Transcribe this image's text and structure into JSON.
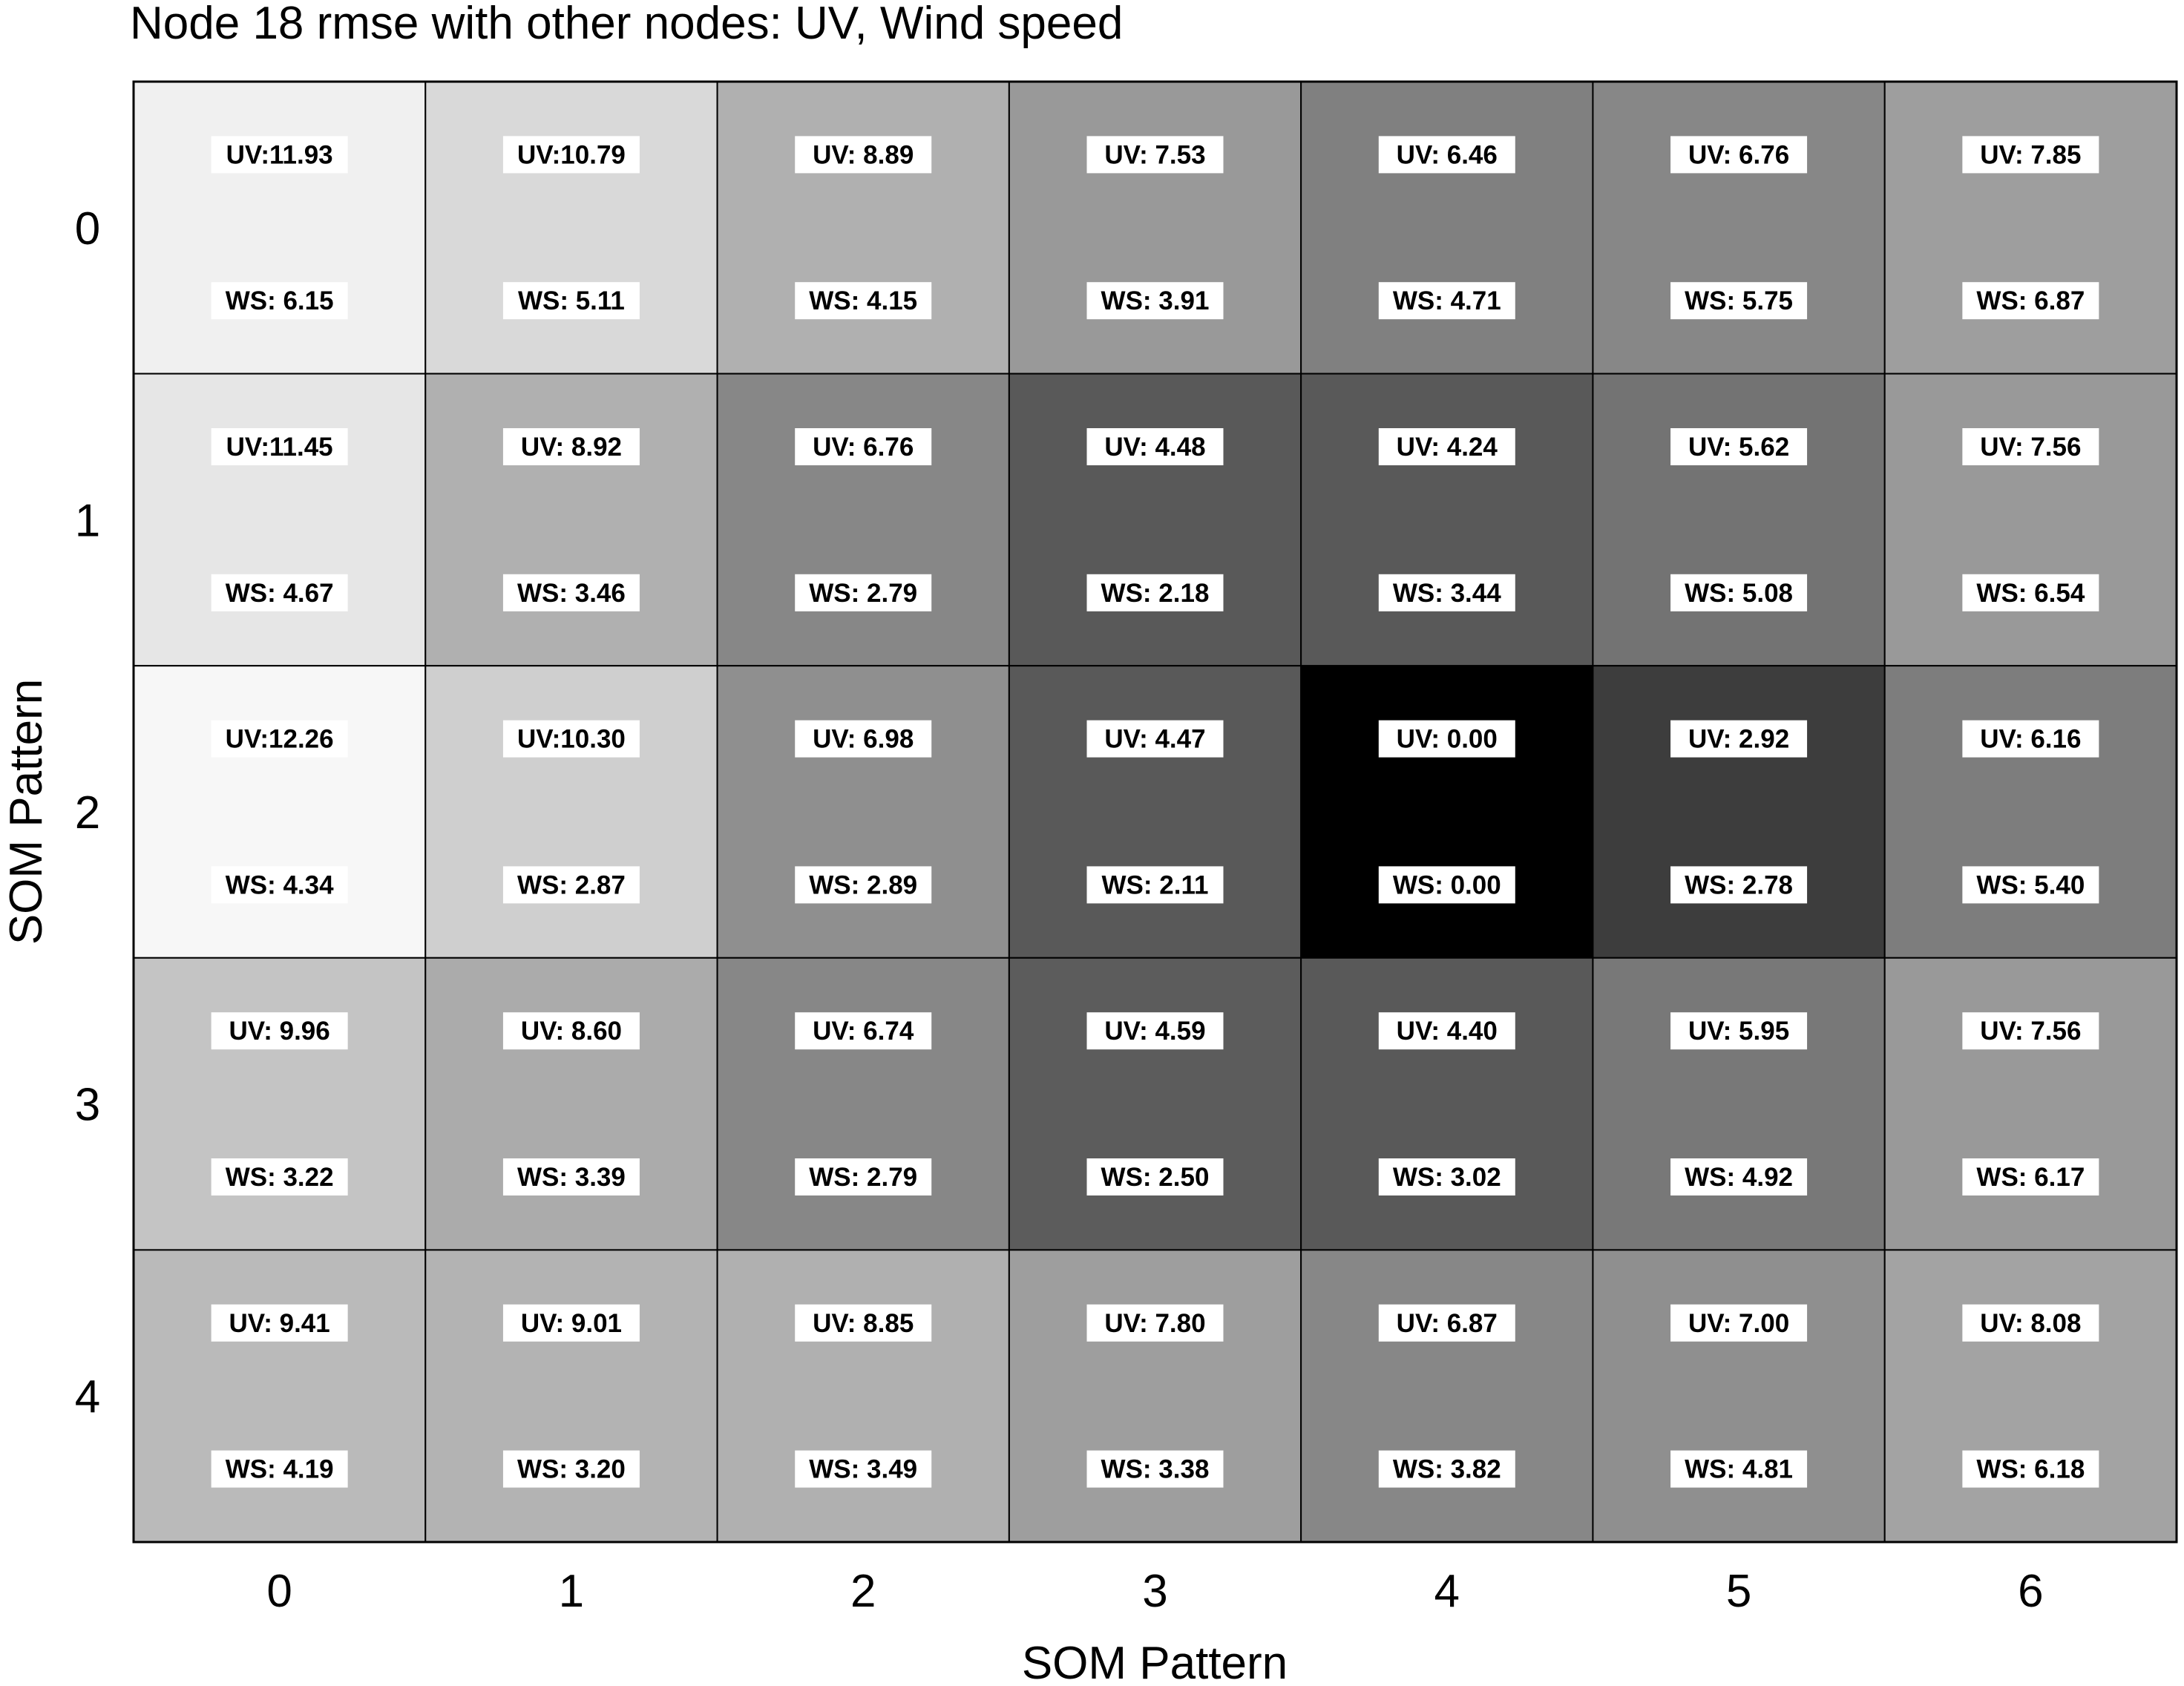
{
  "chart_data": {
    "type": "heatmap",
    "title": "Node 18 rmse with other nodes: UV, Wind speed",
    "xlabel": "SOM Pattern",
    "ylabel": "SOM Pattern",
    "x_categories": [
      "0",
      "1",
      "2",
      "3",
      "4",
      "5",
      "6"
    ],
    "y_categories": [
      "0",
      "1",
      "2",
      "3",
      "4"
    ],
    "colormap": "grayscale (low = black, high = white)",
    "grid": true,
    "cells": [
      [
        {
          "uv": "UV:11.93",
          "ws": "WS: 6.15",
          "shade": 0.94
        },
        {
          "uv": "UV:10.79",
          "ws": "WS: 5.11",
          "shade": 0.85
        },
        {
          "uv": "UV: 8.89",
          "ws": "WS: 4.15",
          "shade": 0.69
        },
        {
          "uv": "UV: 7.53",
          "ws": "WS: 3.91",
          "shade": 0.6
        },
        {
          "uv": "UV: 6.46",
          "ws": "WS: 4.71",
          "shade": 0.5
        },
        {
          "uv": "UV: 6.76",
          "ws": "WS: 5.75",
          "shade": 0.53
        },
        {
          "uv": "UV: 7.85",
          "ws": "WS: 6.87",
          "shade": 0.62
        }
      ],
      [
        {
          "uv": "UV:11.45",
          "ws": "WS: 4.67",
          "shade": 0.9
        },
        {
          "uv": "UV: 8.92",
          "ws": "WS: 3.46",
          "shade": 0.69
        },
        {
          "uv": "UV: 6.76",
          "ws": "WS: 2.79",
          "shade": 0.53
        },
        {
          "uv": "UV: 4.48",
          "ws": "WS: 2.18",
          "shade": 0.35
        },
        {
          "uv": "UV: 4.24",
          "ws": "WS: 3.44",
          "shade": 0.35
        },
        {
          "uv": "UV: 5.62",
          "ws": "WS: 5.08",
          "shade": 0.45
        },
        {
          "uv": "UV: 7.56",
          "ws": "WS: 6.54",
          "shade": 0.6
        }
      ],
      [
        {
          "uv": "UV:12.26",
          "ws": "WS: 4.34",
          "shade": 0.97
        },
        {
          "uv": "UV:10.30",
          "ws": "WS: 2.87",
          "shade": 0.81
        },
        {
          "uv": "UV: 6.98",
          "ws": "WS: 2.89",
          "shade": 0.56
        },
        {
          "uv": "UV: 4.47",
          "ws": "WS: 2.11",
          "shade": 0.35
        },
        {
          "uv": "UV: 0.00",
          "ws": "WS: 0.00",
          "shade": 0.0
        },
        {
          "uv": "UV: 2.92",
          "ws": "WS: 2.78",
          "shade": 0.24
        },
        {
          "uv": "UV: 6.16",
          "ws": "WS: 5.40",
          "shade": 0.49
        }
      ],
      [
        {
          "uv": "UV: 9.96",
          "ws": "WS: 3.22",
          "shade": 0.77
        },
        {
          "uv": "UV: 8.60",
          "ws": "WS: 3.39",
          "shade": 0.67
        },
        {
          "uv": "UV: 6.74",
          "ws": "WS: 2.79",
          "shade": 0.53
        },
        {
          "uv": "UV: 4.59",
          "ws": "WS: 2.50",
          "shade": 0.36
        },
        {
          "uv": "UV: 4.40",
          "ws": "WS: 3.02",
          "shade": 0.35
        },
        {
          "uv": "UV: 5.95",
          "ws": "WS: 4.92",
          "shade": 0.47
        },
        {
          "uv": "UV: 7.56",
          "ws": "WS: 6.17",
          "shade": 0.6
        }
      ],
      [
        {
          "uv": "UV: 9.41",
          "ws": "WS: 4.19",
          "shade": 0.73
        },
        {
          "uv": "UV: 9.01",
          "ws": "WS: 3.20",
          "shade": 0.7
        },
        {
          "uv": "UV: 8.85",
          "ws": "WS: 3.49",
          "shade": 0.69
        },
        {
          "uv": "UV: 7.80",
          "ws": "WS: 3.38",
          "shade": 0.62
        },
        {
          "uv": "UV: 6.87",
          "ws": "WS: 3.82",
          "shade": 0.53
        },
        {
          "uv": "UV: 7.00",
          "ws": "WS: 4.81",
          "shade": 0.56
        },
        {
          "uv": "UV: 8.08",
          "ws": "WS: 6.18",
          "shade": 0.64
        }
      ]
    ]
  }
}
